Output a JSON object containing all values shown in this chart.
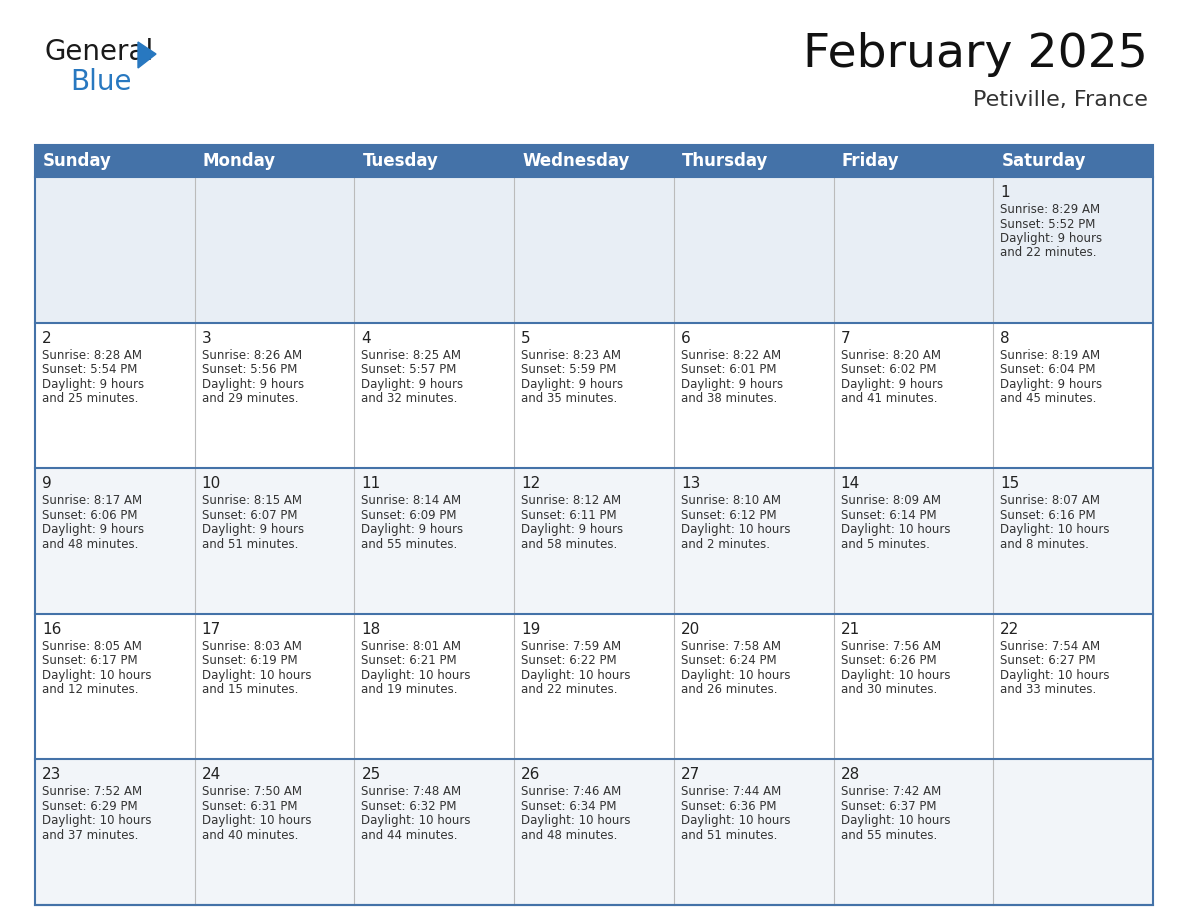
{
  "title": "February 2025",
  "subtitle": "Petiville, France",
  "header_color": "#4472a8",
  "header_text_color": "#ffffff",
  "border_color": "#4472a8",
  "row0_bg": "#e8eef5",
  "row_odd_bg": "#ffffff",
  "row_even_bg": "#f2f5f9",
  "day_names": [
    "Sunday",
    "Monday",
    "Tuesday",
    "Wednesday",
    "Thursday",
    "Friday",
    "Saturday"
  ],
  "title_fontsize": 34,
  "subtitle_fontsize": 16,
  "header_fontsize": 12,
  "day_num_fontsize": 11,
  "info_fontsize": 8.5,
  "days": [
    {
      "day": 1,
      "col": 6,
      "row": 0,
      "sunrise": "8:29 AM",
      "sunset": "5:52 PM",
      "daylight": "9 hours and 22 minutes"
    },
    {
      "day": 2,
      "col": 0,
      "row": 1,
      "sunrise": "8:28 AM",
      "sunset": "5:54 PM",
      "daylight": "9 hours and 25 minutes"
    },
    {
      "day": 3,
      "col": 1,
      "row": 1,
      "sunrise": "8:26 AM",
      "sunset": "5:56 PM",
      "daylight": "9 hours and 29 minutes"
    },
    {
      "day": 4,
      "col": 2,
      "row": 1,
      "sunrise": "8:25 AM",
      "sunset": "5:57 PM",
      "daylight": "9 hours and 32 minutes"
    },
    {
      "day": 5,
      "col": 3,
      "row": 1,
      "sunrise": "8:23 AM",
      "sunset": "5:59 PM",
      "daylight": "9 hours and 35 minutes"
    },
    {
      "day": 6,
      "col": 4,
      "row": 1,
      "sunrise": "8:22 AM",
      "sunset": "6:01 PM",
      "daylight": "9 hours and 38 minutes"
    },
    {
      "day": 7,
      "col": 5,
      "row": 1,
      "sunrise": "8:20 AM",
      "sunset": "6:02 PM",
      "daylight": "9 hours and 41 minutes"
    },
    {
      "day": 8,
      "col": 6,
      "row": 1,
      "sunrise": "8:19 AM",
      "sunset": "6:04 PM",
      "daylight": "9 hours and 45 minutes"
    },
    {
      "day": 9,
      "col": 0,
      "row": 2,
      "sunrise": "8:17 AM",
      "sunset": "6:06 PM",
      "daylight": "9 hours and 48 minutes"
    },
    {
      "day": 10,
      "col": 1,
      "row": 2,
      "sunrise": "8:15 AM",
      "sunset": "6:07 PM",
      "daylight": "9 hours and 51 minutes"
    },
    {
      "day": 11,
      "col": 2,
      "row": 2,
      "sunrise": "8:14 AM",
      "sunset": "6:09 PM",
      "daylight": "9 hours and 55 minutes"
    },
    {
      "day": 12,
      "col": 3,
      "row": 2,
      "sunrise": "8:12 AM",
      "sunset": "6:11 PM",
      "daylight": "9 hours and 58 minutes"
    },
    {
      "day": 13,
      "col": 4,
      "row": 2,
      "sunrise": "8:10 AM",
      "sunset": "6:12 PM",
      "daylight": "10 hours and 2 minutes"
    },
    {
      "day": 14,
      "col": 5,
      "row": 2,
      "sunrise": "8:09 AM",
      "sunset": "6:14 PM",
      "daylight": "10 hours and 5 minutes"
    },
    {
      "day": 15,
      "col": 6,
      "row": 2,
      "sunrise": "8:07 AM",
      "sunset": "6:16 PM",
      "daylight": "10 hours and 8 minutes"
    },
    {
      "day": 16,
      "col": 0,
      "row": 3,
      "sunrise": "8:05 AM",
      "sunset": "6:17 PM",
      "daylight": "10 hours and 12 minutes"
    },
    {
      "day": 17,
      "col": 1,
      "row": 3,
      "sunrise": "8:03 AM",
      "sunset": "6:19 PM",
      "daylight": "10 hours and 15 minutes"
    },
    {
      "day": 18,
      "col": 2,
      "row": 3,
      "sunrise": "8:01 AM",
      "sunset": "6:21 PM",
      "daylight": "10 hours and 19 minutes"
    },
    {
      "day": 19,
      "col": 3,
      "row": 3,
      "sunrise": "7:59 AM",
      "sunset": "6:22 PM",
      "daylight": "10 hours and 22 minutes"
    },
    {
      "day": 20,
      "col": 4,
      "row": 3,
      "sunrise": "7:58 AM",
      "sunset": "6:24 PM",
      "daylight": "10 hours and 26 minutes"
    },
    {
      "day": 21,
      "col": 5,
      "row": 3,
      "sunrise": "7:56 AM",
      "sunset": "6:26 PM",
      "daylight": "10 hours and 30 minutes"
    },
    {
      "day": 22,
      "col": 6,
      "row": 3,
      "sunrise": "7:54 AM",
      "sunset": "6:27 PM",
      "daylight": "10 hours and 33 minutes"
    },
    {
      "day": 23,
      "col": 0,
      "row": 4,
      "sunrise": "7:52 AM",
      "sunset": "6:29 PM",
      "daylight": "10 hours and 37 minutes"
    },
    {
      "day": 24,
      "col": 1,
      "row": 4,
      "sunrise": "7:50 AM",
      "sunset": "6:31 PM",
      "daylight": "10 hours and 40 minutes"
    },
    {
      "day": 25,
      "col": 2,
      "row": 4,
      "sunrise": "7:48 AM",
      "sunset": "6:32 PM",
      "daylight": "10 hours and 44 minutes"
    },
    {
      "day": 26,
      "col": 3,
      "row": 4,
      "sunrise": "7:46 AM",
      "sunset": "6:34 PM",
      "daylight": "10 hours and 48 minutes"
    },
    {
      "day": 27,
      "col": 4,
      "row": 4,
      "sunrise": "7:44 AM",
      "sunset": "6:36 PM",
      "daylight": "10 hours and 51 minutes"
    },
    {
      "day": 28,
      "col": 5,
      "row": 4,
      "sunrise": "7:42 AM",
      "sunset": "6:37 PM",
      "daylight": "10 hours and 55 minutes"
    }
  ]
}
